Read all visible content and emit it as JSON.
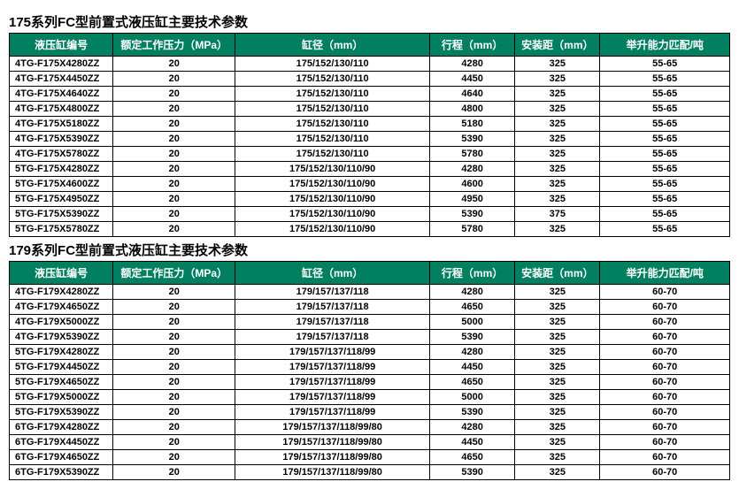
{
  "header_bg": "#008060",
  "header_fg": "#ffffff",
  "tables": [
    {
      "title": "175系列FC型前置式液压缸主要技术参数",
      "columns": [
        "液压缸编号",
        "额定工作压力（MPa）",
        "缸径（mm）",
        "行程（mm）",
        "安装距（mm）",
        "举升能力匹配/吨"
      ],
      "rows": [
        [
          "4TG-F175X4280ZZ",
          "20",
          "175/152/130/110",
          "4280",
          "325",
          "55-65"
        ],
        [
          "4TG-F175X4450ZZ",
          "20",
          "175/152/130/110",
          "4450",
          "325",
          "55-65"
        ],
        [
          "4TG-F175X4640ZZ",
          "20",
          "175/152/130/110",
          "4640",
          "325",
          "55-65"
        ],
        [
          "4TG-F175X4800ZZ",
          "20",
          "175/152/130/110",
          "4800",
          "325",
          "55-65"
        ],
        [
          "4TG-F175X5180ZZ",
          "20",
          "175/152/130/110",
          "5180",
          "325",
          "55-65"
        ],
        [
          "4TG-F175X5390ZZ",
          "20",
          "175/152/130/110",
          "5390",
          "325",
          "55-65"
        ],
        [
          "4TG-F175X5780ZZ",
          "20",
          "175/152/130/110",
          "5780",
          "325",
          "55-65"
        ],
        [
          "5TG-F175X4280ZZ",
          "20",
          "175/152/130/110/90",
          "4280",
          "325",
          "55-65"
        ],
        [
          "5TG-F175X4600ZZ",
          "20",
          "175/152/130/110/90",
          "4600",
          "325",
          "55-65"
        ],
        [
          "5TG-F175X4950ZZ",
          "20",
          "175/152/130/110/90",
          "4950",
          "325",
          "55-65"
        ],
        [
          "5TG-F175X5390ZZ",
          "20",
          "175/152/130/110/90",
          "5390",
          "375",
          "55-65"
        ],
        [
          "5TG-F175X5780ZZ",
          "20",
          "175/152/130/110/90",
          "5780",
          "325",
          "55-65"
        ]
      ]
    },
    {
      "title": "179系列FC型前置式液压缸主要技术参数",
      "columns": [
        "液压缸编号",
        "额定工作压力（MPa）",
        "缸径（mm）",
        "行程（mm）",
        "安装距（mm）",
        "举升能力匹配/吨"
      ],
      "rows": [
        [
          "4TG-F179X4280ZZ",
          "20",
          "179/157/137/118",
          "4280",
          "325",
          "60-70"
        ],
        [
          "4TG-F179X4650ZZ",
          "20",
          "179/157/137/118",
          "4650",
          "325",
          "60-70"
        ],
        [
          "4TG-F179X5000ZZ",
          "20",
          "179/157/137/118",
          "5000",
          "325",
          "60-70"
        ],
        [
          "4TG-F179X5390ZZ",
          "20",
          "179/157/137/118",
          "5390",
          "325",
          "60-70"
        ],
        [
          "5TG-F179X4280ZZ",
          "20",
          "179/157/137/118/99",
          "4280",
          "325",
          "60-70"
        ],
        [
          "5TG-F179X4450ZZ",
          "20",
          "179/157/137/118/99",
          "4450",
          "325",
          "60-70"
        ],
        [
          "5TG-F179X4650ZZ",
          "20",
          "179/157/137/118/99",
          "4650",
          "325",
          "60-70"
        ],
        [
          "5TG-F179X5000ZZ",
          "20",
          "179/157/137/118/99",
          "5000",
          "325",
          "60-70"
        ],
        [
          "5TG-F179X5390ZZ",
          "20",
          "179/157/137/118/99",
          "5390",
          "325",
          "60-70"
        ],
        [
          "6TG-F179X4280ZZ",
          "20",
          "179/157/137/118/99/80",
          "4280",
          "325",
          "60-70"
        ],
        [
          "6TG-F179X4450ZZ",
          "20",
          "179/157/137/118/99/80",
          "4450",
          "325",
          "60-70"
        ],
        [
          "6TG-F179X4650ZZ",
          "20",
          "179/157/137/118/99/80",
          "4650",
          "325",
          "60-70"
        ],
        [
          "6TG-F179X5390ZZ",
          "20",
          "179/157/137/118/99/80",
          "5390",
          "325",
          "60-70"
        ]
      ]
    }
  ]
}
